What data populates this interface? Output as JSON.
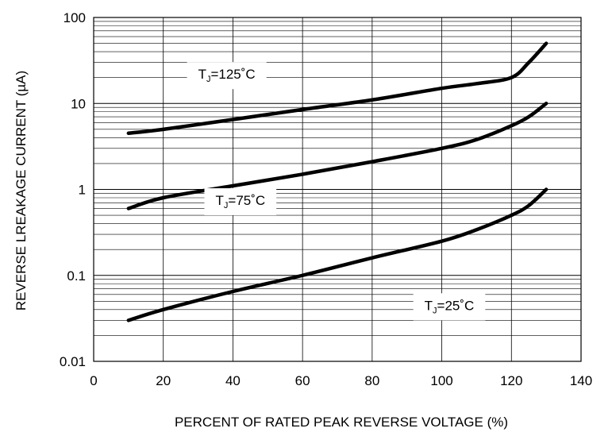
{
  "chart_data": {
    "type": "line",
    "title": "",
    "xlabel": "PERCENT OF RATED PEAK REVERSE VOLTAGE (%)",
    "ylabel": "REVERSE LREAKAGE CURRENT (µA)",
    "xlim": [
      0,
      140
    ],
    "ylim": [
      0.01,
      100
    ],
    "yscale": "log",
    "grid": true,
    "x_ticks": [
      "0",
      "20",
      "40",
      "60",
      "80",
      "100",
      "120",
      "140"
    ],
    "y_ticks": [
      "0.01",
      "0.1",
      "1",
      "10",
      "100"
    ],
    "series": [
      {
        "name": "TJ=125°C",
        "x": [
          10,
          20,
          40,
          60,
          80,
          100,
          110,
          120,
          125,
          130
        ],
        "y": [
          4.5,
          5.0,
          6.5,
          8.5,
          11.0,
          15.0,
          17.0,
          20.0,
          30.0,
          50.0
        ]
      },
      {
        "name": "TJ=75°C",
        "x": [
          10,
          20,
          40,
          60,
          80,
          100,
          110,
          120,
          125,
          130
        ],
        "y": [
          0.6,
          0.8,
          1.1,
          1.5,
          2.1,
          3.0,
          3.8,
          5.5,
          7.0,
          10.0
        ]
      },
      {
        "name": "TJ=25°C",
        "x": [
          10,
          20,
          40,
          60,
          80,
          100,
          110,
          120,
          125,
          130
        ],
        "y": [
          0.03,
          0.04,
          0.065,
          0.1,
          0.16,
          0.25,
          0.34,
          0.5,
          0.65,
          1.0
        ]
      }
    ],
    "annotations": [
      {
        "main": "T",
        "sub": "J",
        "rest": "=125˚C",
        "x": 30,
        "y": 22
      },
      {
        "main": "T",
        "sub": "J",
        "rest": "=75˚C",
        "x": 35,
        "y": 0.75
      },
      {
        "main": "T",
        "sub": "J",
        "rest": "=25˚C",
        "x": 95,
        "y": 0.045
      }
    ]
  }
}
